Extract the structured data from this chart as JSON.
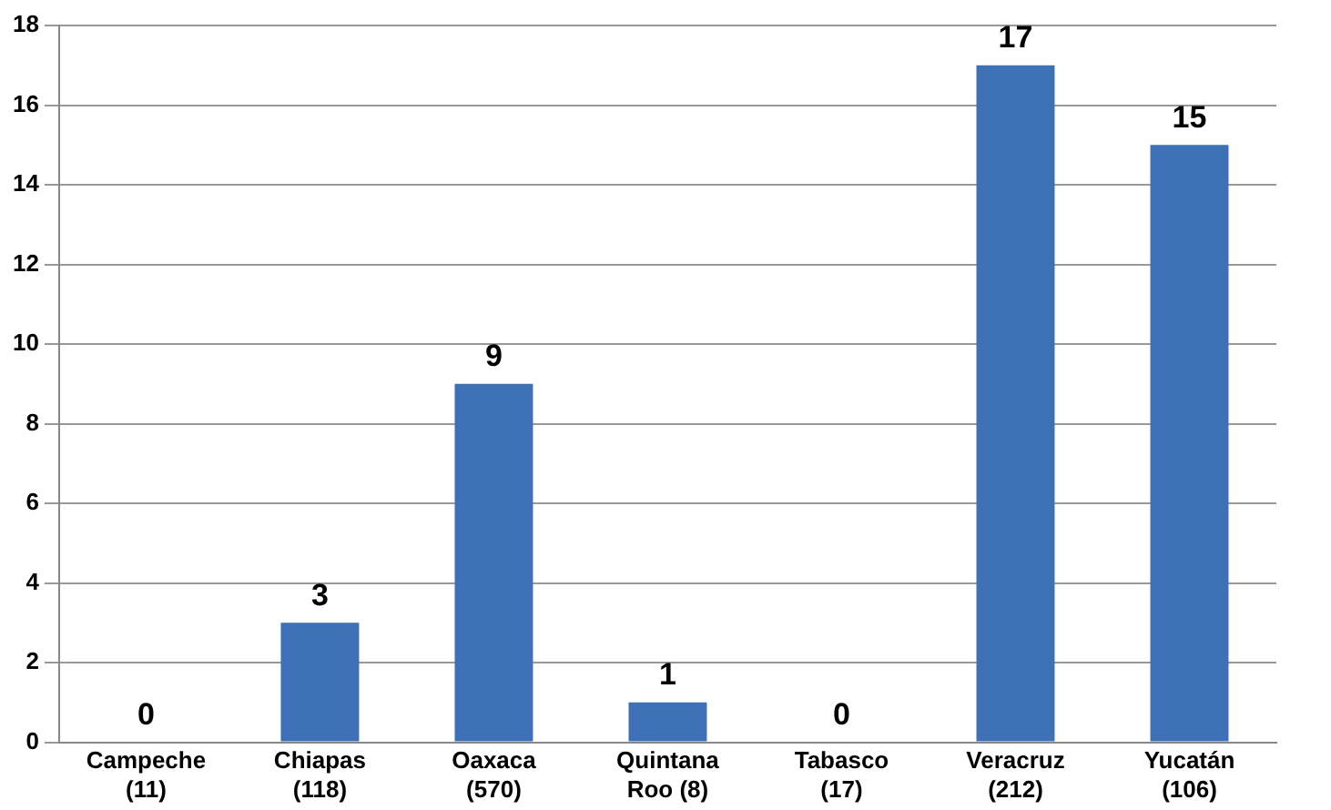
{
  "chart_data": {
    "type": "bar",
    "categories": [
      "Campeche (11)",
      "Chiapas (118)",
      "Oaxaca (570)",
      "Quintana Roo (8)",
      "Tabasco (17)",
      "Veracruz (212)",
      "Yucatán (106)"
    ],
    "values": [
      0,
      3,
      9,
      1,
      0,
      17,
      15
    ],
    "color": "#3d70b5",
    "ylim": [
      0,
      18
    ],
    "yticks": [
      0,
      2,
      4,
      6,
      8,
      10,
      12,
      14,
      16,
      18
    ],
    "grid": "y",
    "legend": false,
    "data_labels": true
  }
}
